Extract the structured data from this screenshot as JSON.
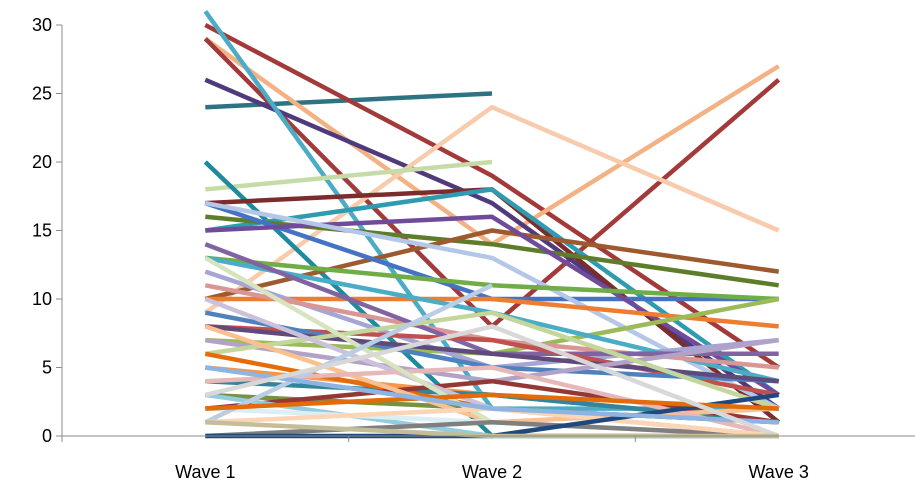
{
  "chart_data": {
    "type": "line",
    "categories": [
      "Wave 1",
      "Wave 2",
      "Wave 3"
    ],
    "ylim": [
      0,
      30
    ],
    "y_ticks": [
      "0",
      "5",
      "10",
      "15",
      "20",
      "25",
      "30"
    ],
    "grid": false,
    "legend": "none",
    "title": "",
    "xlabel": "",
    "ylabel": "",
    "series": [
      {
        "color": "#2E7382",
        "values": [
          24,
          25,
          null
        ]
      },
      {
        "color": "#A33A3A",
        "values": [
          30,
          19,
          5
        ]
      },
      {
        "color": "#F4B183",
        "values": [
          29,
          14,
          27
        ]
      },
      {
        "color": "#A33A3A",
        "values": [
          29,
          8,
          26
        ]
      },
      {
        "color": "#4F3A7B",
        "values": [
          26,
          17,
          2
        ]
      },
      {
        "color": "#4BACC6",
        "values": [
          31,
          2,
          2
        ]
      },
      {
        "color": "#F8CBAD",
        "values": [
          9,
          24,
          15
        ]
      },
      {
        "color": "#C6DCA8",
        "values": [
          18,
          20,
          null
        ]
      },
      {
        "color": "#1F8A9E",
        "values": [
          20,
          0,
          0
        ]
      },
      {
        "color": "#7B2C2C",
        "values": [
          17,
          18,
          1
        ]
      },
      {
        "color": "#2E9BB0",
        "values": [
          15,
          18,
          3
        ]
      },
      {
        "color": "#5E7D2B",
        "values": [
          16,
          14,
          11
        ]
      },
      {
        "color": "#9C5A2E",
        "values": [
          10,
          15,
          12
        ]
      },
      {
        "color": "#4472C4",
        "values": [
          17,
          10,
          10
        ]
      },
      {
        "color": "#6F4B9A",
        "values": [
          15,
          16,
          3
        ]
      },
      {
        "color": "#B4C7E7",
        "values": [
          17,
          13,
          2
        ]
      },
      {
        "color": "#70AD47",
        "values": [
          13,
          11,
          10
        ]
      },
      {
        "color": "#ED7D31",
        "values": [
          10,
          10,
          8
        ]
      },
      {
        "color": "#9BBB59",
        "values": [
          7,
          6,
          10
        ]
      },
      {
        "color": "#A5A5D6",
        "values": [
          12,
          5,
          7
        ]
      },
      {
        "color": "#4BACC6",
        "values": [
          13,
          9,
          4
        ]
      },
      {
        "color": "#D99694",
        "values": [
          11,
          7,
          5
        ]
      },
      {
        "color": "#8064A2",
        "values": [
          14,
          6,
          6
        ]
      },
      {
        "color": "#C0504D",
        "values": [
          8,
          7,
          3
        ]
      },
      {
        "color": "#4F81BD",
        "values": [
          9,
          5,
          4
        ]
      },
      {
        "color": "#F79646",
        "values": [
          5,
          3,
          1
        ]
      },
      {
        "color": "#604A7B",
        "values": [
          8,
          6,
          4
        ]
      },
      {
        "color": "#B3A2C7",
        "values": [
          7,
          4,
          7
        ]
      },
      {
        "color": "#C3D69B",
        "values": [
          6,
          9,
          2
        ]
      },
      {
        "color": "#31859C",
        "values": [
          4,
          3,
          1
        ]
      },
      {
        "color": "#E46C0A",
        "values": [
          6,
          2,
          1
        ]
      },
      {
        "color": "#77933C",
        "values": [
          3,
          2,
          1
        ]
      },
      {
        "color": "#953735",
        "values": [
          2,
          4,
          1
        ]
      },
      {
        "color": "#FAC090",
        "values": [
          8,
          1,
          2
        ]
      },
      {
        "color": "#93CDDD",
        "values": [
          3,
          0,
          0
        ]
      },
      {
        "color": "#CCC1DA",
        "values": [
          10,
          2,
          0
        ]
      },
      {
        "color": "#E6B9B8",
        "values": [
          4,
          5,
          0
        ]
      },
      {
        "color": "#D7E4BD",
        "values": [
          13,
          1,
          0
        ]
      },
      {
        "color": "#DBEEF4",
        "values": [
          2,
          1,
          0
        ]
      },
      {
        "color": "#B9CDE5",
        "values": [
          1,
          11,
          null
        ]
      },
      {
        "color": "#7F7F7F",
        "values": [
          0,
          1,
          0
        ]
      },
      {
        "color": "#FCD5B5",
        "values": [
          1,
          2,
          0
        ]
      },
      {
        "color": "#1F497D",
        "values": [
          0,
          0,
          3
        ]
      },
      {
        "color": "#E26B0A",
        "values": [
          2,
          3,
          2
        ]
      },
      {
        "color": "#8EB4E3",
        "values": [
          5,
          2,
          1
        ]
      },
      {
        "color": "#D8D8D8",
        "values": [
          3,
          8,
          0
        ]
      },
      {
        "color": "#C4BD97",
        "values": [
          1,
          0,
          0
        ]
      }
    ]
  }
}
